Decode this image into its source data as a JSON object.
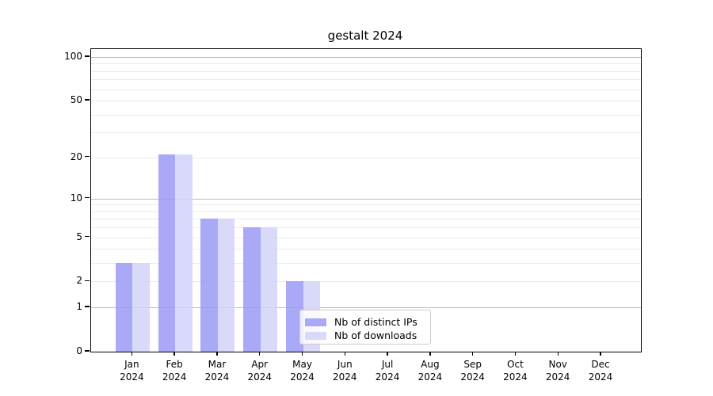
{
  "chart_data": {
    "type": "bar",
    "title": "gestalt 2024",
    "categories": [
      "Jan",
      "Feb",
      "Mar",
      "Apr",
      "May",
      "Jun",
      "Jul",
      "Aug",
      "Sep",
      "Oct",
      "Nov",
      "Dec"
    ],
    "year_label": "2024",
    "series": [
      {
        "name": "Nb of distinct IPs",
        "color": "#a9a9f7",
        "values": [
          3,
          21,
          7,
          6,
          2,
          0,
          0,
          0,
          0,
          0,
          0,
          0
        ]
      },
      {
        "name": "Nb of downloads",
        "color": "#d9d9f9",
        "values": [
          3,
          21,
          7,
          6,
          2,
          0,
          0,
          0,
          0,
          0,
          0,
          0
        ]
      }
    ],
    "y_ticks": [
      0,
      1,
      2,
      5,
      10,
      20,
      50,
      100
    ],
    "y_scale": "log(1+v)",
    "ylim": [
      0,
      110
    ],
    "grid": "on",
    "major_grid_values": [
      1,
      10,
      100
    ],
    "legend_position": "lower center-right inside plot"
  },
  "legend": {
    "items": [
      {
        "label": "Nb of distinct IPs",
        "color": "#a9a9f7"
      },
      {
        "label": "Nb of downloads",
        "color": "#d9d9f9"
      }
    ]
  },
  "colors": {
    "bar_dark": "#a9a9f7",
    "bar_light": "#d9d9f9",
    "major_grid": "#bcbcbc",
    "minor_grid": "#ebebeb",
    "spine": "#000000"
  }
}
